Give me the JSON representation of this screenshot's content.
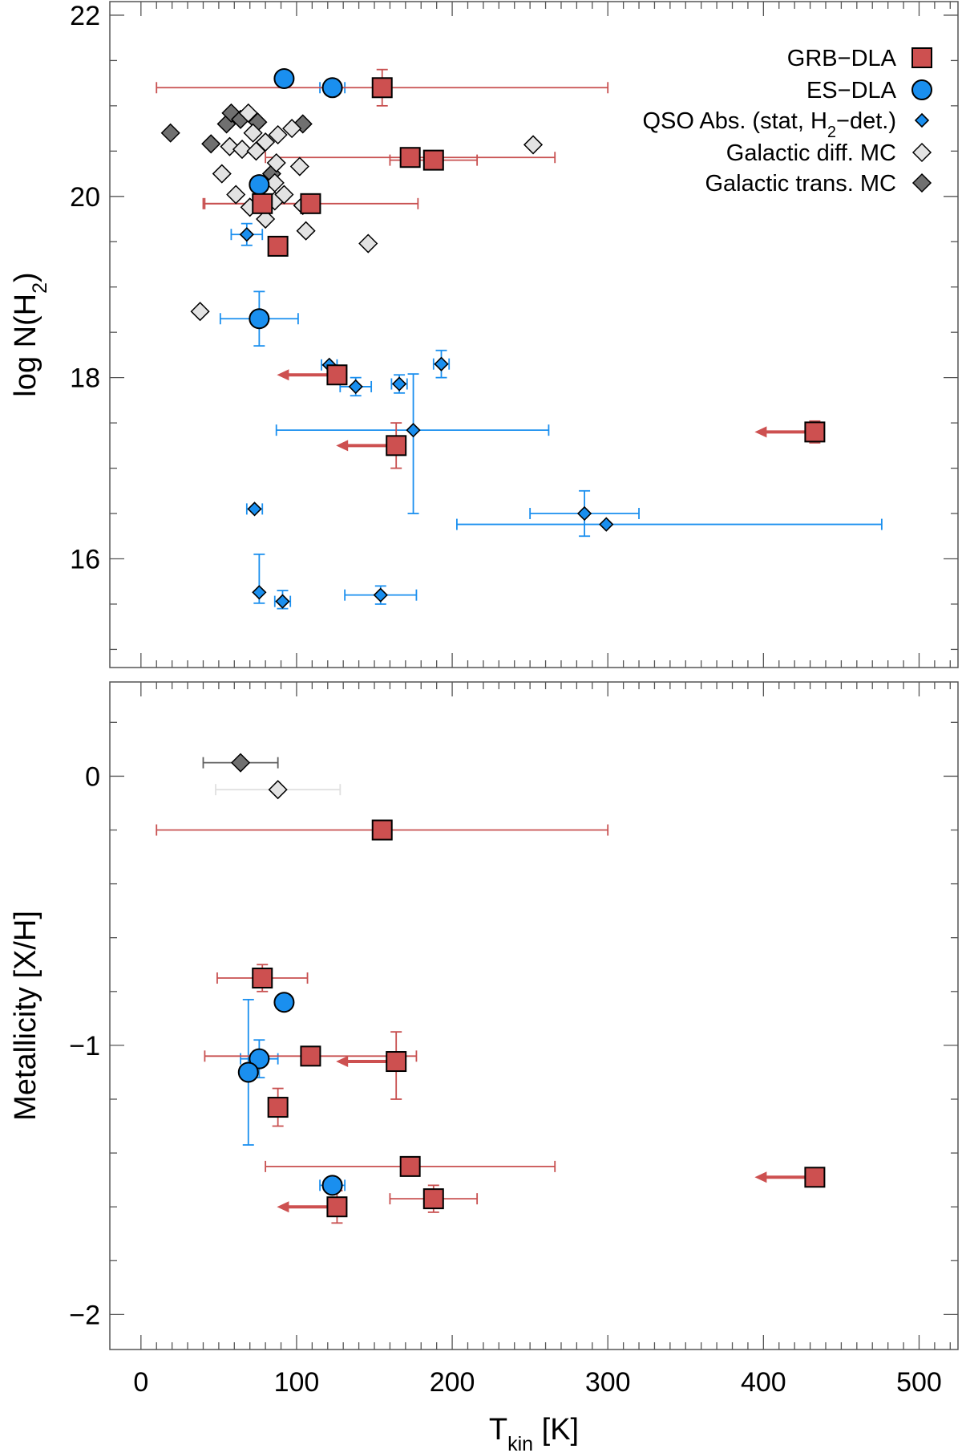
{
  "chart_data": {
    "type": "scatter",
    "colors": {
      "grb": "#cd5050",
      "grb_err": "#c85050",
      "es": "#1a8fef",
      "es_err": "#1a8fef",
      "qso": "#1a8fef",
      "qso_err": "#1a8fef",
      "diff": "#e3e3e3",
      "diff_err": "#e0e0e0",
      "trans": "#707070",
      "trans_err": "#606060"
    },
    "legend": [
      {
        "key": "grb",
        "text": "GRB−DLA",
        "marker": "square"
      },
      {
        "key": "es",
        "text": "ES−DLA",
        "marker": "circle"
      },
      {
        "key": "qso",
        "text_main": "QSO Abs. (stat, H",
        "text_sub": "2",
        "text_end": "−det.)",
        "marker": "diamond-small"
      },
      {
        "key": "diff",
        "text": "Galactic diff. MC",
        "marker": "diamond"
      },
      {
        "key": "trans",
        "text": "Galactic trans. MC",
        "marker": "diamond"
      }
    ],
    "x_axis": {
      "label_main": "T",
      "label_sub": "kin",
      "label_end": " [K]",
      "range": [
        -20,
        525
      ],
      "ticks": [
        0,
        100,
        200,
        300,
        400,
        500
      ],
      "tick_labels": [
        "0",
        "100",
        "200",
        "300",
        "400",
        "500"
      ],
      "minor_step": 10
    },
    "panels": [
      {
        "id": "top",
        "ylabel_main": "log N(H",
        "ylabel_sub": "2",
        "ylabel_end": ")",
        "ylim": [
          14.8,
          22.15
        ],
        "yticks": [
          16,
          18,
          20,
          22
        ],
        "ytick_labels": [
          "16",
          "18",
          "20",
          "22"
        ],
        "yminor_step": 0.5,
        "series": {
          "trans": [
            {
              "x": 19,
              "y": 20.7
            },
            {
              "x": 45,
              "y": 20.58
            },
            {
              "x": 55,
              "y": 20.8
            },
            {
              "x": 58,
              "y": 20.92
            },
            {
              "x": 64,
              "y": 20.85
            },
            {
              "x": 75,
              "y": 20.82
            },
            {
              "x": 104,
              "y": 20.8
            },
            {
              "x": 84,
              "y": 20.25
            }
          ],
          "diff": [
            {
              "x": 52,
              "y": 20.25
            },
            {
              "x": 57,
              "y": 20.55
            },
            {
              "x": 61,
              "y": 20.02
            },
            {
              "x": 65,
              "y": 20.52
            },
            {
              "x": 69,
              "y": 20.92
            },
            {
              "x": 72,
              "y": 20.7
            },
            {
              "x": 74,
              "y": 20.5
            },
            {
              "x": 80,
              "y": 20.6
            },
            {
              "x": 87,
              "y": 20.37
            },
            {
              "x": 88,
              "y": 20.68
            },
            {
              "x": 97,
              "y": 20.75
            },
            {
              "x": 102,
              "y": 20.33
            },
            {
              "x": 106,
              "y": 19.62
            },
            {
              "x": 146,
              "y": 19.48
            },
            {
              "x": 252,
              "y": 20.57
            },
            {
              "x": 38,
              "y": 18.73
            },
            {
              "x": 70,
              "y": 19.88
            },
            {
              "x": 80,
              "y": 19.75
            },
            {
              "x": 86,
              "y": 19.95
            },
            {
              "x": 92,
              "y": 20.02
            },
            {
              "x": 86,
              "y": 20.15
            },
            {
              "x": 104,
              "y": 19.9
            }
          ],
          "qso": [
            {
              "x": 68,
              "y": 19.58,
              "xerr": [
                10,
                10
              ],
              "yerr": [
                0.12,
                0.12
              ]
            },
            {
              "x": 73,
              "y": 16.55,
              "xerr": [
                5,
                5
              ],
              "yerr": [
                0,
                0
              ]
            },
            {
              "x": 76,
              "y": 15.63,
              "xerr": [
                0,
                0
              ],
              "yerr": [
                0.12,
                0.42
              ]
            },
            {
              "x": 91,
              "y": 15.53,
              "xerr": [
                5,
                5
              ],
              "yerr": [
                0.08,
                0.12
              ]
            },
            {
              "x": 121,
              "y": 18.14,
              "xerr": [
                5,
                5
              ],
              "yerr": [
                0,
                0
              ]
            },
            {
              "x": 138,
              "y": 17.9,
              "xerr": [
                10,
                10
              ],
              "yerr": [
                0.1,
                0.1
              ]
            },
            {
              "x": 166,
              "y": 17.93,
              "xerr": [
                5,
                5
              ],
              "yerr": [
                0.1,
                0.1
              ]
            },
            {
              "x": 175,
              "y": 17.42,
              "xerr": [
                88,
                87
              ],
              "yerr": [
                0.92,
                0.62
              ]
            },
            {
              "x": 193,
              "y": 18.15,
              "xerr": [
                5,
                5
              ],
              "yerr": [
                0.15,
                0.15
              ]
            },
            {
              "x": 154,
              "y": 15.6,
              "xerr": [
                23,
                23
              ],
              "yerr": [
                0.1,
                0.1
              ]
            },
            {
              "x": 285,
              "y": 16.5,
              "xerr": [
                35,
                35
              ],
              "yerr": [
                0.25,
                0.25
              ]
            },
            {
              "x": 299,
              "y": 16.38,
              "xerr": [
                96,
                177
              ],
              "yerr": [
                0,
                0
              ]
            }
          ],
          "es": [
            {
              "x": 92,
              "y": 21.3,
              "xerr": [
                0,
                0
              ],
              "yerr": [
                0,
                0
              ]
            },
            {
              "x": 123,
              "y": 21.2,
              "xerr": [
                8,
                8
              ],
              "yerr": [
                0,
                0
              ]
            },
            {
              "x": 76,
              "y": 20.13,
              "xerr": [
                0,
                0
              ],
              "yerr": [
                0,
                0
              ]
            },
            {
              "x": 76,
              "y": 18.65,
              "xerr": [
                25,
                25
              ],
              "yerr": [
                0.3,
                0.3
              ]
            }
          ],
          "grb": [
            {
              "x": 155,
              "y": 21.2,
              "xerr": [
                145,
                145
              ],
              "yerr": [
                0.2,
                0.2
              ]
            },
            {
              "x": 173,
              "y": 20.43,
              "xerr": [
                93,
                93
              ],
              "yerr": [
                0,
                0
              ]
            },
            {
              "x": 188,
              "y": 20.4,
              "xerr": [
                28,
                28
              ],
              "yerr": [
                0,
                0
              ]
            },
            {
              "x": 78,
              "y": 19.92,
              "xerr": [
                37,
                37
              ],
              "yerr": [
                0,
                0
              ]
            },
            {
              "x": 109,
              "y": 19.92,
              "xerr": [
                69,
                69
              ],
              "yerr": [
                0.1,
                0.1
              ]
            },
            {
              "x": 88,
              "y": 19.45,
              "xerr": [
                0,
                0
              ],
              "yerr": [
                0,
                0
              ]
            },
            {
              "x": 126,
              "y": 18.03,
              "xerr": [
                0,
                0
              ],
              "yerr": [
                0.1,
                0.1
              ],
              "upper_limit": true
            },
            {
              "x": 164,
              "y": 17.25,
              "xerr": [
                0,
                0
              ],
              "yerr": [
                0.25,
                0.25
              ],
              "upper_limit": true
            },
            {
              "x": 433,
              "y": 17.4,
              "xerr": [
                0,
                0
              ],
              "yerr": [
                0.12,
                0.12
              ],
              "upper_limit": true
            }
          ]
        }
      },
      {
        "id": "bottom",
        "ylabel_main": "Metallicity [X/H]",
        "ylabel_sub": "",
        "ylabel_end": "",
        "ylim": [
          -2.13,
          0.35
        ],
        "yticks": [
          -2,
          -1,
          0
        ],
        "ytick_labels": [
          "−2",
          "−1",
          "0"
        ],
        "yminor_step": 0.2,
        "series": {
          "trans": [
            {
              "x": 64,
              "y": 0.05,
              "xerr": [
                24,
                24
              ],
              "yerr": [
                0,
                0
              ]
            }
          ],
          "diff": [
            {
              "x": 88,
              "y": -0.05,
              "xerr": [
                40,
                40
              ],
              "yerr": [
                0,
                0
              ]
            }
          ],
          "qso": [],
          "es": [
            {
              "x": 92,
              "y": -0.84,
              "xerr": [
                0,
                0
              ],
              "yerr": [
                0,
                0
              ]
            },
            {
              "x": 76,
              "y": -1.05,
              "xerr": [
                12,
                12
              ],
              "yerr": [
                0.07,
                0.07
              ]
            },
            {
              "x": 69,
              "y": -1.1,
              "xerr": [
                0,
                0
              ],
              "yerr": [
                0.27,
                0.27
              ]
            },
            {
              "x": 123,
              "y": -1.52,
              "xerr": [
                8,
                8
              ],
              "yerr": [
                0,
                0
              ]
            }
          ],
          "grb": [
            {
              "x": 155,
              "y": -0.2,
              "xerr": [
                145,
                145
              ],
              "yerr": [
                0,
                0
              ]
            },
            {
              "x": 78,
              "y": -0.75,
              "xerr": [
                29,
                29
              ],
              "yerr": [
                0.05,
                0.05
              ]
            },
            {
              "x": 109,
              "y": -1.04,
              "xerr": [
                68,
                68
              ],
              "yerr": [
                0,
                0
              ]
            },
            {
              "x": 164,
              "y": -1.06,
              "xerr": [
                0,
                0
              ],
              "yerr": [
                0.14,
                0.11
              ],
              "upper_limit": true
            },
            {
              "x": 88,
              "y": -1.23,
              "xerr": [
                0,
                0
              ],
              "yerr": [
                0.07,
                0.07
              ]
            },
            {
              "x": 173,
              "y": -1.45,
              "xerr": [
                93,
                93
              ],
              "yerr": [
                0,
                0
              ]
            },
            {
              "x": 433,
              "y": -1.49,
              "xerr": [
                0,
                0
              ],
              "yerr": [
                0,
                0
              ],
              "upper_limit": true
            },
            {
              "x": 188,
              "y": -1.57,
              "xerr": [
                28,
                28
              ],
              "yerr": [
                0.05,
                0.05
              ]
            },
            {
              "x": 126,
              "y": -1.6,
              "xerr": [
                0,
                0
              ],
              "yerr": [
                0.06,
                0.06
              ],
              "upper_limit": true
            }
          ]
        }
      }
    ]
  }
}
